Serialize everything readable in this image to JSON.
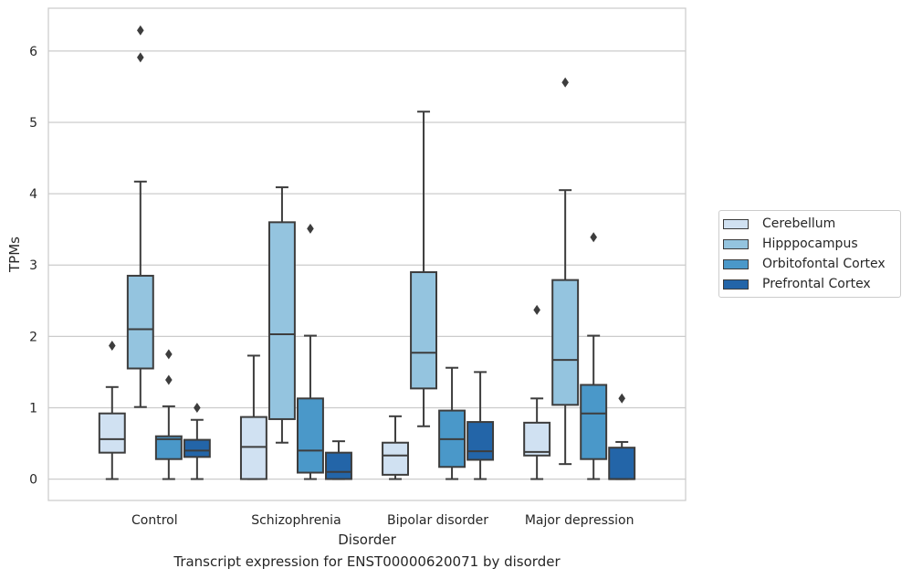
{
  "chart_data": {
    "type": "boxplot",
    "xlabel": "Disorder",
    "ylabel": "TPMs",
    "caption": "Transcript expression for ENST00000620071 by disorder",
    "ylim": [
      -0.3,
      6.6
    ],
    "yticks": [
      "0",
      "1",
      "2",
      "3",
      "4",
      "5",
      "6"
    ],
    "categories": [
      "Control",
      "Schizophrenia",
      "Bipolar disorder",
      "Major depression"
    ],
    "grid": true,
    "legend_position": "right",
    "series": [
      {
        "name": "Cerebellum",
        "color": "#d0e1f2",
        "boxes": [
          {
            "whislo": 0.0,
            "q1": 0.37,
            "med": 0.56,
            "q3": 0.92,
            "whishi": 1.29,
            "fliers": [
              1.87
            ]
          },
          {
            "whislo": 0.0,
            "q1": 0.0,
            "med": 0.45,
            "q3": 0.87,
            "whishi": 1.73,
            "fliers": []
          },
          {
            "whislo": 0.0,
            "q1": 0.06,
            "med": 0.33,
            "q3": 0.51,
            "whishi": 0.88,
            "fliers": []
          },
          {
            "whislo": 0.0,
            "q1": 0.33,
            "med": 0.38,
            "q3": 0.79,
            "whishi": 1.13,
            "fliers": [
              2.37
            ]
          }
        ]
      },
      {
        "name": "Hipppocampus",
        "color": "#94c4df",
        "boxes": [
          {
            "whislo": 1.01,
            "q1": 1.55,
            "med": 2.1,
            "q3": 2.85,
            "whishi": 4.17,
            "fliers": [
              5.91,
              6.29
            ]
          },
          {
            "whislo": 0.51,
            "q1": 0.84,
            "med": 2.03,
            "q3": 3.6,
            "whishi": 4.09,
            "fliers": []
          },
          {
            "whislo": 0.74,
            "q1": 1.27,
            "med": 1.77,
            "q3": 2.9,
            "whishi": 5.15,
            "fliers": []
          },
          {
            "whislo": 0.21,
            "q1": 1.04,
            "med": 1.67,
            "q3": 2.79,
            "whishi": 4.05,
            "fliers": [
              5.56
            ]
          }
        ]
      },
      {
        "name": "Orbitofontal Cortex",
        "color": "#4a98c9",
        "boxes": [
          {
            "whislo": 0.0,
            "q1": 0.28,
            "med": 0.56,
            "q3": 0.6,
            "whishi": 1.02,
            "fliers": [
              1.39,
              1.75
            ]
          },
          {
            "whislo": 0.0,
            "q1": 0.09,
            "med": 0.4,
            "q3": 1.13,
            "whishi": 2.01,
            "fliers": [
              3.51
            ]
          },
          {
            "whislo": 0.0,
            "q1": 0.17,
            "med": 0.56,
            "q3": 0.96,
            "whishi": 1.56,
            "fliers": []
          },
          {
            "whislo": 0.0,
            "q1": 0.28,
            "med": 0.92,
            "q3": 1.32,
            "whishi": 2.01,
            "fliers": [
              3.39
            ]
          }
        ]
      },
      {
        "name": "Prefrontal Cortex",
        "color": "#2365a8",
        "boxes": [
          {
            "whislo": 0.0,
            "q1": 0.31,
            "med": 0.4,
            "q3": 0.55,
            "whishi": 0.83,
            "fliers": [
              1.0
            ]
          },
          {
            "whislo": 0.0,
            "q1": 0.0,
            "med": 0.1,
            "q3": 0.37,
            "whishi": 0.53,
            "fliers": []
          },
          {
            "whislo": 0.0,
            "q1": 0.27,
            "med": 0.39,
            "q3": 0.8,
            "whishi": 1.5,
            "fliers": []
          },
          {
            "whislo": 0.0,
            "q1": 0.0,
            "med": 0.0,
            "q3": 0.44,
            "whishi": 0.52,
            "fliers": [
              1.13
            ]
          }
        ]
      }
    ]
  }
}
